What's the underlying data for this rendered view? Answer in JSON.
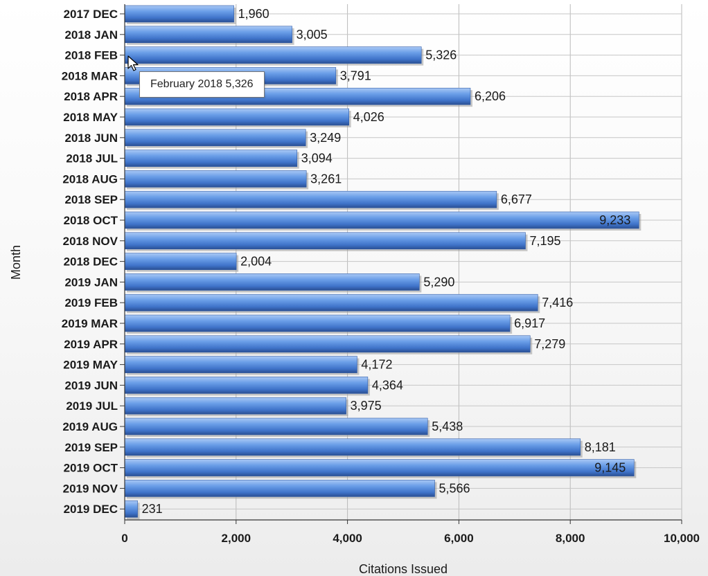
{
  "chart_data": {
    "type": "bar",
    "orientation": "horizontal",
    "categories": [
      "2017 DEC",
      "2018 JAN",
      "2018 FEB",
      "2018 MAR",
      "2018 APR",
      "2018 MAY",
      "2018 JUN",
      "2018 JUL",
      "2018 AUG",
      "2018 SEP",
      "2018 OCT",
      "2018 NOV",
      "2018 DEC",
      "2019 JAN",
      "2019 FEB",
      "2019 MAR",
      "2019 APR",
      "2019 MAY",
      "2019 JUN",
      "2019 JUL",
      "2019 AUG",
      "2019 SEP",
      "2019 OCT",
      "2019 NOV",
      "2019 DEC"
    ],
    "values": [
      1960,
      3005,
      5326,
      3791,
      6206,
      4026,
      3249,
      3094,
      3261,
      6677,
      9233,
      7195,
      2004,
      5290,
      7416,
      6917,
      7279,
      4172,
      4364,
      3975,
      5438,
      8181,
      9145,
      5566,
      231
    ],
    "value_labels": [
      "1,960",
      "3,005",
      "5,326",
      "3,791",
      "6,206",
      "4,026",
      "3,249",
      "3,094",
      "3,261",
      "6,677",
      "9,233",
      "7,195",
      "2,004",
      "5,290",
      "7,416",
      "6,917",
      "7,279",
      "4,172",
      "4,364",
      "3,975",
      "5,438",
      "8,181",
      "9,145",
      "5,566",
      "231"
    ],
    "xlabel": "Citations Issued",
    "ylabel": "Month",
    "xlim": [
      0,
      10000
    ],
    "x_ticks": [
      0,
      2000,
      4000,
      6000,
      8000,
      10000
    ],
    "x_tick_labels": [
      "0",
      "2,000",
      "4,000",
      "6,000",
      "8,000",
      "10,000"
    ],
    "grid": true,
    "bar_color": "#4a86e0"
  },
  "tooltip": {
    "text": "February 2018 5,326",
    "category": "2018 FEB"
  }
}
